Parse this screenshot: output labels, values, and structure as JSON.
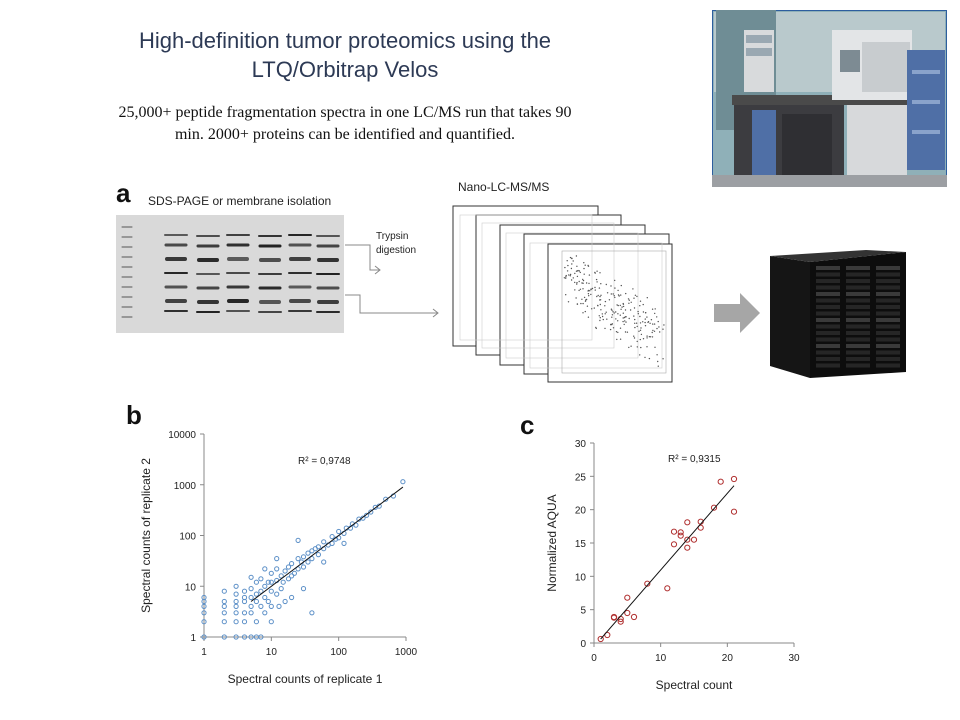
{
  "header": {
    "title_line1": "High-definition tumor proteomics using the",
    "title_line2": "LTQ/Orbitrap Velos",
    "subtitle_line1": "25,000+ peptide fragmentation spectra in one LC/MS run that takes 90",
    "subtitle_line2": "min. 2000+ proteins can be identified and quantified."
  },
  "panel_a": {
    "letter": "a",
    "gel_label": "SDS-PAGE or membrane isolation",
    "digestion_line1": "Trypsin",
    "digestion_line2": "digestion",
    "ms_label": "Nano-LC-MS/MS"
  },
  "panel_b": {
    "letter": "b"
  },
  "panel_c": {
    "letter": "c"
  },
  "chart_data": [
    {
      "type": "scatter",
      "title": "",
      "xlabel": "Spectral counts of replicate 1",
      "ylabel": "Spectral counts of replicate 2",
      "x_scale": "log",
      "y_scale": "log",
      "xlim": [
        1,
        1000
      ],
      "ylim": [
        1,
        10000
      ],
      "x_ticks": [
        "1",
        "10",
        "100",
        "1000"
      ],
      "y_ticks": [
        "1",
        "10",
        "100",
        "1000",
        "10000"
      ],
      "annotation": "R² = 0,9748",
      "marker_color": "#5b8fc7",
      "trendline": [
        [
          5,
          5
        ],
        [
          900,
          900
        ]
      ],
      "points": [
        [
          1,
          1
        ],
        [
          1,
          2
        ],
        [
          1,
          3
        ],
        [
          1,
          4
        ],
        [
          1,
          5
        ],
        [
          1,
          6
        ],
        [
          2,
          1
        ],
        [
          2,
          2
        ],
        [
          2,
          3
        ],
        [
          2,
          4
        ],
        [
          2,
          5
        ],
        [
          3,
          1
        ],
        [
          3,
          2
        ],
        [
          3,
          3
        ],
        [
          3,
          4
        ],
        [
          3,
          5
        ],
        [
          3,
          7
        ],
        [
          4,
          1
        ],
        [
          4,
          2
        ],
        [
          4,
          3
        ],
        [
          4,
          5
        ],
        [
          4,
          6
        ],
        [
          4,
          8
        ],
        [
          5,
          1
        ],
        [
          5,
          3
        ],
        [
          5,
          4
        ],
        [
          5,
          6
        ],
        [
          5,
          9
        ],
        [
          6,
          2
        ],
        [
          6,
          5
        ],
        [
          6,
          7
        ],
        [
          6,
          12
        ],
        [
          7,
          1
        ],
        [
          7,
          4
        ],
        [
          7,
          8
        ],
        [
          7,
          14
        ],
        [
          8,
          3
        ],
        [
          8,
          6
        ],
        [
          8,
          10
        ],
        [
          9,
          5
        ],
        [
          9,
          12
        ],
        [
          10,
          4
        ],
        [
          10,
          8
        ],
        [
          10,
          12
        ],
        [
          10,
          18
        ],
        [
          12,
          7
        ],
        [
          12,
          13
        ],
        [
          12,
          22
        ],
        [
          14,
          9
        ],
        [
          14,
          16
        ],
        [
          15,
          12
        ],
        [
          16,
          20
        ],
        [
          18,
          14
        ],
        [
          18,
          24
        ],
        [
          20,
          16
        ],
        [
          20,
          28
        ],
        [
          22,
          18
        ],
        [
          25,
          22
        ],
        [
          25,
          35
        ],
        [
          28,
          30
        ],
        [
          30,
          24
        ],
        [
          30,
          38
        ],
        [
          35,
          30
        ],
        [
          35,
          45
        ],
        [
          40,
          35
        ],
        [
          40,
          50
        ],
        [
          45,
          55
        ],
        [
          50,
          42
        ],
        [
          50,
          60
        ],
        [
          60,
          55
        ],
        [
          60,
          75
        ],
        [
          70,
          65
        ],
        [
          80,
          70
        ],
        [
          80,
          95
        ],
        [
          90,
          85
        ],
        [
          100,
          90
        ],
        [
          100,
          120
        ],
        [
          120,
          110
        ],
        [
          130,
          140
        ],
        [
          150,
          140
        ],
        [
          160,
          170
        ],
        [
          180,
          160
        ],
        [
          200,
          210
        ],
        [
          230,
          220
        ],
        [
          260,
          250
        ],
        [
          300,
          290
        ],
        [
          350,
          360
        ],
        [
          400,
          380
        ],
        [
          500,
          520
        ],
        [
          650,
          600
        ],
        [
          900,
          1150
        ],
        [
          13,
          4
        ],
        [
          20,
          6
        ],
        [
          30,
          9
        ],
        [
          40,
          3
        ],
        [
          6,
          1
        ],
        [
          10,
          2
        ],
        [
          16,
          5
        ],
        [
          3,
          10
        ],
        [
          5,
          15
        ],
        [
          8,
          22
        ],
        [
          12,
          35
        ],
        [
          2,
          8
        ],
        [
          25,
          80
        ],
        [
          60,
          30
        ],
        [
          120,
          70
        ]
      ]
    },
    {
      "type": "scatter",
      "title": "",
      "xlabel": "Spectral count",
      "ylabel": "Normalized AQUA",
      "xlim": [
        0,
        30
      ],
      "ylim": [
        0,
        30
      ],
      "x_ticks": [
        "0",
        "10",
        "20",
        "30"
      ],
      "y_ticks": [
        "0",
        "5",
        "10",
        "15",
        "20",
        "25",
        "30"
      ],
      "annotation": "R² = 0,9315",
      "marker_color": "#b03030",
      "trendline": [
        [
          1,
          0.6
        ],
        [
          21,
          23.6
        ]
      ],
      "points": [
        [
          1,
          0.6
        ],
        [
          2,
          1.2
        ],
        [
          3,
          3.8
        ],
        [
          3,
          3.9
        ],
        [
          4,
          3.2
        ],
        [
          4,
          3.6
        ],
        [
          5,
          4.5
        ],
        [
          5,
          6.8
        ],
        [
          6,
          3.9
        ],
        [
          8,
          8.9
        ],
        [
          11,
          8.2
        ],
        [
          12,
          14.8
        ],
        [
          12,
          16.7
        ],
        [
          13,
          16.1
        ],
        [
          13,
          16.6
        ],
        [
          14,
          14.3
        ],
        [
          14,
          15.5
        ],
        [
          14,
          18.1
        ],
        [
          15,
          15.5
        ],
        [
          16,
          17.3
        ],
        [
          16,
          18.2
        ],
        [
          18,
          20.3
        ],
        [
          19,
          24.2
        ],
        [
          21,
          24.6
        ],
        [
          21,
          19.7
        ]
      ]
    }
  ]
}
